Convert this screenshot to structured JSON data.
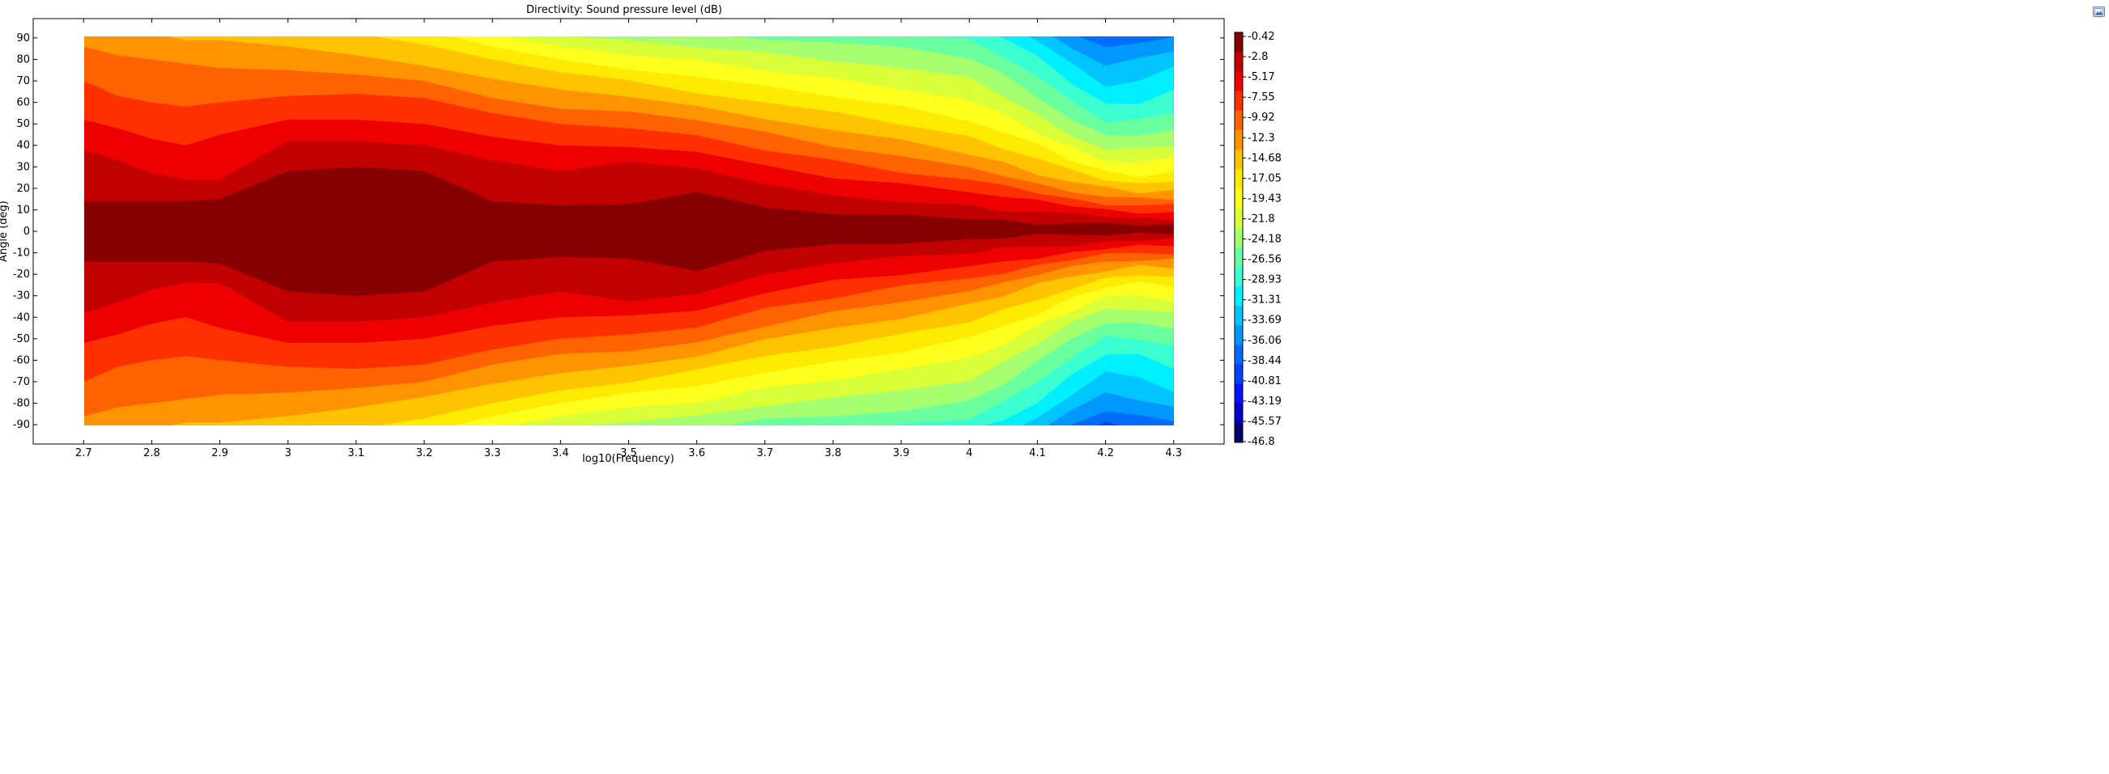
{
  "toolbar": {
    "export_icon": "image-export-icon"
  },
  "chart_data": {
    "type": "heatmap",
    "subtype": "filled-contour",
    "title": "Directivity: Sound pressure level (dB)",
    "xlabel": "log10(Frequency)",
    "ylabel": "Angle (deg)",
    "xlim": [
      2.7,
      4.3
    ],
    "ylim": [
      -90,
      90
    ],
    "plot_xlim": [
      2.626,
      4.374
    ],
    "plot_ylim": [
      -99,
      99
    ],
    "x_ticks": [
      "2.7",
      "2.8",
      "2.9",
      "3",
      "3.1",
      "3.2",
      "3.3",
      "3.4",
      "3.5",
      "3.6",
      "3.7",
      "3.8",
      "3.9",
      "4",
      "4.1",
      "4.2",
      "4.3"
    ],
    "y_ticks": [
      "90",
      "80",
      "70",
      "60",
      "50",
      "40",
      "30",
      "20",
      "10",
      "0",
      "-10",
      "-20",
      "-30",
      "-40",
      "-50",
      "-60",
      "-70",
      "-80",
      "-90"
    ],
    "colorbar": {
      "min": -46.8,
      "max": -0.42,
      "labels": [
        "-0.42",
        "-2.8",
        "-5.17",
        "-7.55",
        "-9.92",
        "-12.3",
        "-14.68",
        "-17.05",
        "-19.43",
        "-21.8",
        "-24.18",
        "-26.56",
        "-28.93",
        "-31.31",
        "-33.69",
        "-36.06",
        "-38.44",
        "-40.81",
        "-43.19",
        "-45.57",
        "-46.8"
      ],
      "colors": [
        "#870000",
        "#c10000",
        "#ee0000",
        "#ff3000",
        "#ff6200",
        "#ff9300",
        "#ffc300",
        "#ffeb00",
        "#ffff1e",
        "#d9ff38",
        "#a6ff6f",
        "#6aff9f",
        "#3bffd1",
        "#00f0ff",
        "#00c5ff",
        "#0098ff",
        "#006cff",
        "#0041ff",
        "#0012ff",
        "#0000c8",
        "#00006e"
      ]
    },
    "contour_bands": [
      {
        "level": -2.8,
        "w": [
          14,
          14,
          14,
          14,
          15,
          28,
          30,
          28,
          14,
          12,
          13,
          18,
          12,
          8,
          7,
          6,
          5,
          4,
          3.6,
          3.2,
          3,
          3
        ]
      },
      {
        "level": -5.17,
        "w": [
          38,
          33,
          27,
          24,
          24,
          42,
          42,
          40,
          33,
          28,
          32,
          30,
          22,
          16,
          14,
          12,
          10,
          9,
          8,
          7,
          6,
          6
        ]
      },
      {
        "level": -7.55,
        "w": [
          52,
          48,
          43,
          40,
          45,
          52,
          52,
          50,
          44,
          40,
          40,
          37,
          30,
          25,
          22,
          19,
          16,
          14,
          12,
          10,
          9,
          9
        ]
      },
      {
        "level": -9.92,
        "w": [
          70,
          63,
          60,
          58,
          60,
          63,
          64,
          62,
          55,
          50,
          48,
          44,
          38,
          33,
          28,
          24,
          21,
          18,
          15,
          13,
          12,
          12
        ]
      },
      {
        "level": -12.3,
        "w": [
          86,
          82,
          80,
          78,
          76,
          75,
          73,
          70,
          62,
          57,
          55,
          52,
          46,
          40,
          35,
          29,
          26,
          22,
          19,
          16,
          15,
          15
        ]
      },
      {
        "level": -14.68,
        "w": [
          95,
          96,
          92,
          89,
          89,
          86,
          82,
          77,
          71,
          66,
          63,
          58,
          53,
          47,
          42,
          36,
          32,
          27,
          23,
          20,
          18,
          19
        ]
      },
      {
        "level": -17.05,
        "w": [
          99,
          99,
          99,
          98,
          96,
          94,
          92,
          87,
          80,
          74,
          70,
          65,
          60,
          55,
          50,
          44,
          39,
          34,
          28,
          24,
          22,
          24
        ]
      },
      {
        "level": -19.43,
        "w": [
          99,
          99,
          99,
          99,
          99,
          99,
          99,
          94,
          86,
          80,
          76,
          72,
          67,
          63,
          58,
          52,
          46,
          40,
          33,
          28,
          26,
          28
        ]
      },
      {
        "level": -21.8,
        "w": [
          99,
          99,
          99,
          99,
          99,
          99,
          99,
          98,
          92,
          86,
          82,
          79,
          75,
          71,
          67,
          61,
          54,
          46,
          39,
          33,
          32,
          34
        ]
      },
      {
        "level": -24.18,
        "w": [
          99,
          99,
          99,
          99,
          99,
          99,
          99,
          99,
          96,
          91,
          88,
          86,
          83,
          80,
          76,
          71,
          63,
          54,
          45,
          38,
          38,
          40
        ]
      },
      {
        "level": -26.56,
        "w": [
          99,
          99,
          99,
          99,
          99,
          99,
          99,
          99,
          99,
          96,
          93,
          92,
          90,
          88,
          85,
          81,
          73,
          63,
          52,
          44,
          45,
          47
        ]
      },
      {
        "level": -28.93,
        "w": [
          99,
          99,
          99,
          99,
          99,
          99,
          99,
          99,
          99,
          99,
          97,
          96,
          95,
          94,
          92,
          89,
          82,
          72,
          60,
          51,
          52,
          56
        ]
      },
      {
        "level": -31.31,
        "w": [
          99,
          99,
          99,
          99,
          99,
          99,
          99,
          99,
          99,
          99,
          99,
          99,
          99,
          99,
          97,
          95,
          90,
          81,
          69,
          59,
          60,
          66
        ]
      },
      {
        "level": -33.69,
        "w": [
          99,
          99,
          99,
          99,
          99,
          99,
          99,
          99,
          99,
          99,
          99,
          99,
          99,
          99,
          99,
          99,
          96,
          89,
          78,
          68,
          70,
          76
        ]
      },
      {
        "level": -36.06,
        "w": [
          99,
          99,
          99,
          99,
          99,
          99,
          99,
          99,
          99,
          99,
          99,
          99,
          99,
          99,
          99,
          99,
          99,
          95,
          86,
          77,
          80,
          84
        ]
      },
      {
        "level": -38.44,
        "w": [
          99,
          99,
          99,
          99,
          99,
          99,
          99,
          99,
          99,
          99,
          99,
          99,
          99,
          99,
          99,
          99,
          99,
          99,
          92,
          85,
          88,
          90
        ]
      },
      {
        "level": -40.81,
        "w": [
          99,
          99,
          99,
          99,
          99,
          99,
          99,
          99,
          99,
          99,
          99,
          99,
          99,
          99,
          99,
          99,
          99,
          99,
          97,
          91,
          94,
          95
        ]
      },
      {
        "level": -43.19,
        "w": [
          99,
          99,
          99,
          99,
          99,
          99,
          99,
          99,
          99,
          99,
          99,
          99,
          99,
          99,
          99,
          99,
          99,
          99,
          99,
          96,
          98,
          99
        ]
      }
    ],
    "contour_x": [
      2.7,
      2.75,
      2.8,
      2.85,
      2.9,
      3.0,
      3.1,
      3.2,
      3.3,
      3.4,
      3.5,
      3.6,
      3.7,
      3.8,
      3.9,
      4.0,
      4.05,
      4.1,
      4.15,
      4.2,
      4.25,
      4.3
    ]
  }
}
